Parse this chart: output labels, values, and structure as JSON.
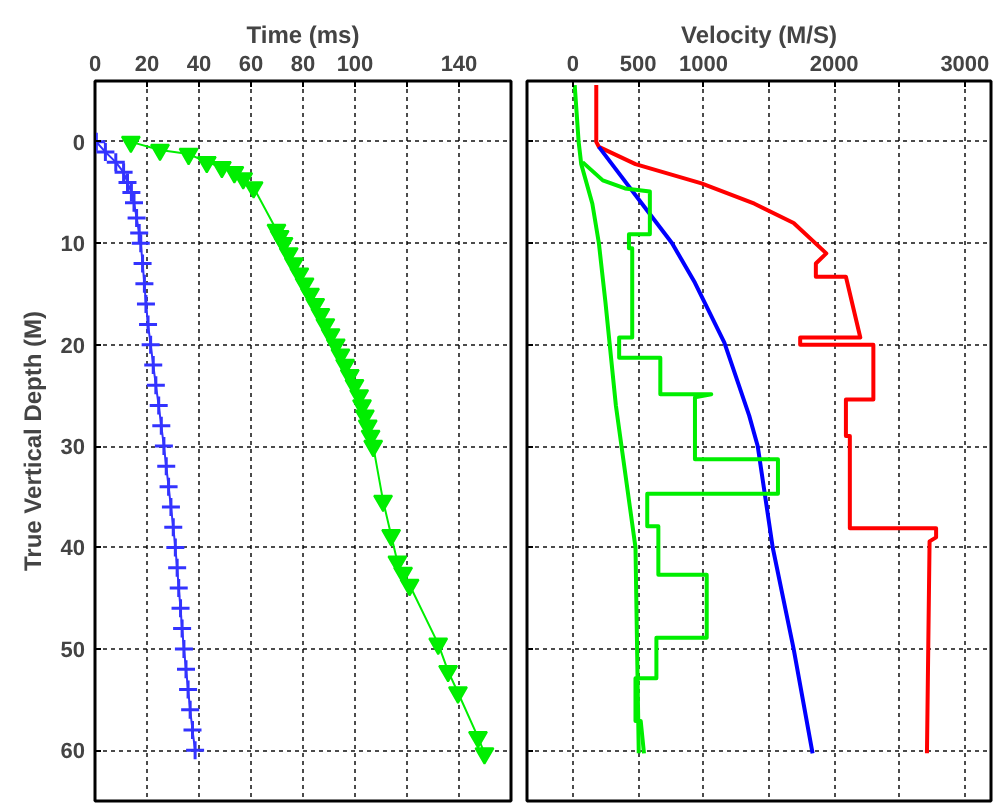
{
  "chart_data": [
    {
      "type": "line",
      "xlabel": "Time (ms)",
      "ylabel": "True Vertical Depth (M)",
      "xlim": [
        0,
        160
      ],
      "ylim": [
        65,
        -6
      ],
      "xticks": [
        0,
        20,
        40,
        60,
        80,
        100,
        {
          "value": 120,
          "label": null
        },
        140
      ],
      "yticks": [
        0,
        10,
        20,
        30,
        40,
        50,
        60
      ],
      "grid": true,
      "line_style": "solid",
      "series": [
        {
          "color": "#3333ff",
          "marker": "cross",
          "x": [
            0.5,
            4,
            8,
            11,
            12.5,
            14,
            15,
            16,
            17,
            17.6,
            18.3,
            19,
            19.6,
            20.4,
            21.4,
            22.4,
            23.4,
            24.5,
            25.5,
            26.5,
            27.4,
            28.3,
            29.2,
            30.1,
            30.9,
            31.6,
            32.2,
            32.9,
            33.5,
            34.2,
            35,
            35.8,
            36.6,
            37.5,
            38.5
          ],
          "values": [
            0,
            1,
            2,
            3,
            4,
            5,
            6,
            7.5,
            9,
            10,
            12,
            14,
            16,
            18,
            20,
            22,
            24,
            26,
            28,
            30,
            32,
            34,
            36,
            38,
            40,
            42,
            44,
            46,
            48,
            50,
            52,
            54,
            56,
            58,
            60
          ]
        },
        {
          "color": "#00ee00",
          "marker": "triangle",
          "x": [
            13.8,
            25,
            36,
            43,
            48.8,
            53.6,
            57,
            61,
            69.8,
            71,
            72.5,
            74.5,
            76.5,
            78.6,
            80.6,
            82.7,
            84.7,
            86.7,
            88.6,
            90.6,
            92.6,
            94.4,
            96.2,
            98,
            99.8,
            101.6,
            102.7,
            103.8,
            104.9,
            106,
            107,
            110.8,
            113.9,
            116.3,
            118.5,
            121,
            132,
            135.8,
            139.6,
            147.3,
            149.8
          ],
          "values": [
            0,
            0.8,
            1.2,
            2,
            2.5,
            3,
            3.6,
            4.5,
            8.7,
            9.3,
            10,
            11,
            12,
            13,
            14,
            15,
            16,
            17,
            18,
            19,
            20,
            21,
            22,
            23,
            24,
            25,
            26,
            27,
            28,
            29,
            30,
            35.4,
            38.8,
            41.4,
            42.5,
            43.7,
            49.5,
            52.2,
            54.3,
            58.7,
            60.3
          ]
        }
      ]
    },
    {
      "type": "line",
      "xlabel": "Velocity (M/S)",
      "xlim": [
        -350,
        3200
      ],
      "ylim": [
        65,
        -6
      ],
      "xticks": [
        0,
        500,
        1000,
        {
          "value": 1500,
          "label": null
        },
        2000,
        {
          "value": 2500,
          "label": null
        },
        3000
      ],
      "yticks": [
        0,
        10,
        20,
        30,
        40,
        50,
        60
      ],
      "grid": true,
      "tick_labels": "x",
      "line_style": "solid",
      "series": [
        {
          "color": "#ff0000",
          "x": [
            180,
            180,
            200,
            480,
            985,
            1390,
            1690,
            1940,
            1860,
            1860,
            2090,
            2200,
            1740,
            1740,
            2300,
            2300,
            2090,
            2090,
            2120,
            2120,
            2780,
            2780,
            2730,
            2710
          ],
          "values": [
            -5.6,
            0,
            0.5,
            2.2,
            4.1,
            6.1,
            8,
            11,
            12,
            13.3,
            13.3,
            19.3,
            19.3,
            20,
            20,
            25.4,
            25.4,
            29,
            29,
            38.1,
            38.1,
            39,
            39.4,
            60.3
          ]
        },
        {
          "color": "#0000ff",
          "x": [
            200,
            300,
            530,
            760,
            935,
            1160,
            1350,
            1415,
            1530,
            1690,
            1835
          ],
          "values": [
            0.5,
            2.2,
            6.1,
            10,
            13.9,
            19.8,
            27,
            30,
            40,
            50,
            60.3
          ]
        },
        {
          "color": "#00ee00",
          "x": [
            15,
            45,
            65,
            150,
            200,
            250,
            330,
            480,
            505
          ],
          "values": [
            -5.6,
            0,
            2.2,
            6.1,
            10,
            15.8,
            26,
            40,
            60.3
          ]
        },
        {
          "color": "#00ee00",
          "x": [
            75,
            230,
            400,
            590,
            590,
            430,
            430,
            455,
            455,
            355,
            355,
            670,
            670,
            1060,
            935,
            935,
            1570,
            1570,
            570,
            570,
            655,
            655,
            1025,
            1025,
            640,
            640,
            480,
            480,
            520,
            545
          ],
          "values": [
            2,
            3.8,
            4.6,
            4.9,
            9.1,
            9.1,
            10.5,
            10.5,
            19.3,
            19.3,
            21.3,
            21.3,
            24.9,
            24.9,
            25.2,
            31.3,
            31.3,
            34.7,
            34.7,
            37.9,
            37.9,
            42.7,
            42.7,
            48.9,
            48.9,
            52.9,
            52.9,
            57.1,
            57.1,
            60.3
          ]
        }
      ]
    }
  ]
}
